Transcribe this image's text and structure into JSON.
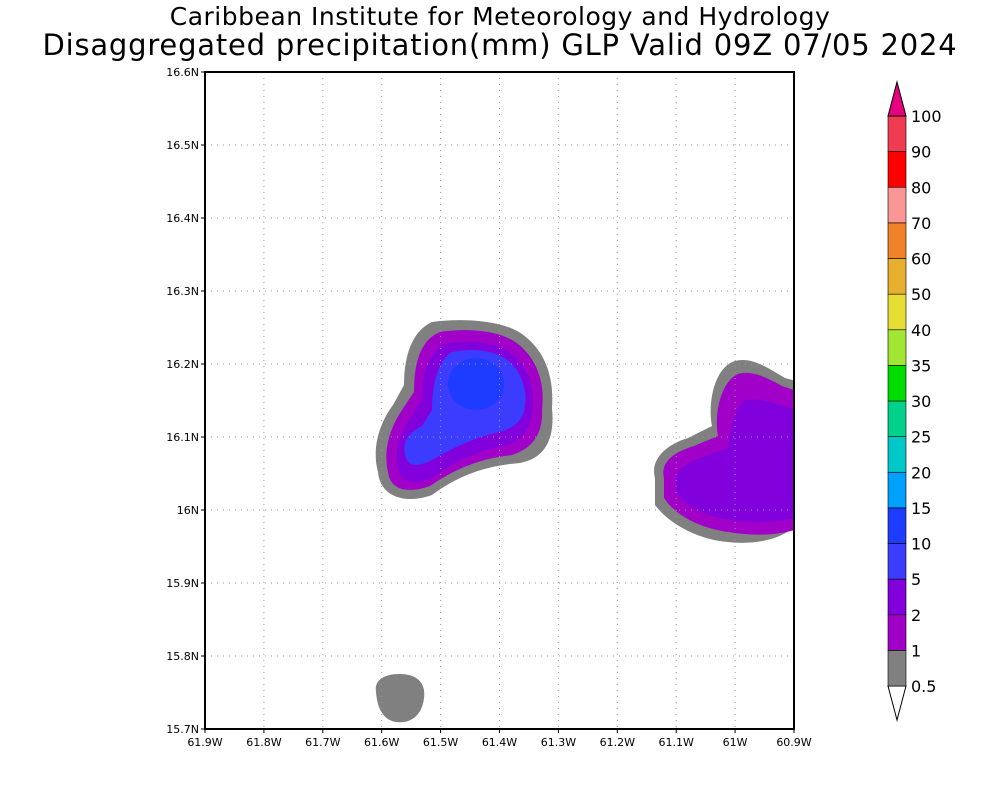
{
  "title": {
    "line1": "Caribbean Institute for Meteorology and Hydrology",
    "line2": "Disaggregated precipitation(mm) GLP Valid 09Z 07/05 2024"
  },
  "map": {
    "lon_range": [
      -61.9,
      -60.9
    ],
    "lat_range": [
      15.7,
      16.6
    ],
    "x_tick_labels": [
      "61.9W",
      "61.8W",
      "61.7W",
      "61.6W",
      "61.5W",
      "61.4W",
      "61.3W",
      "61.2W",
      "61.1W",
      "61W",
      "60.9W"
    ],
    "y_tick_labels": [
      "15.7N",
      "15.8N",
      "15.9N",
      "16N",
      "16.1N",
      "16.2N",
      "16.3N",
      "16.4N",
      "16.5N",
      "16.6N"
    ],
    "grid": "dotted"
  },
  "legend": {
    "levels": [
      "0.5",
      "1",
      "2",
      "5",
      "10",
      "15",
      "20",
      "25",
      "30",
      "35",
      "40",
      "50",
      "60",
      "70",
      "80",
      "90",
      "100"
    ],
    "colors": [
      "#ffffff",
      "#808080",
      "#a000c8",
      "#8200dc",
      "#3c3cff",
      "#1e3cff",
      "#00a0ff",
      "#00c8c8",
      "#00d28c",
      "#00dc00",
      "#a0e632",
      "#e6dc32",
      "#e6af2d",
      "#f08228",
      "#fa9696",
      "#ff0000",
      "#f03c50",
      "#e6007f"
    ]
  },
  "chart_data": {
    "type": "heatmap",
    "title": "Disaggregated precipitation(mm) GLP Valid 09Z 07/05 2024",
    "xlim": [
      -61.9,
      -60.9
    ],
    "ylim": [
      15.7,
      16.6
    ],
    "units": "mm",
    "features": [
      {
        "level_range": [
          "0.5",
          "1"
        ],
        "lon": -61.56,
        "lat": 15.74
      },
      {
        "level_range": [
          "0.5",
          "10"
        ],
        "lon": -61.45,
        "lat": 16.15,
        "max_level": "10"
      },
      {
        "level_range": [
          "0.5",
          "2"
        ],
        "lon": -61.0,
        "lat": 16.07,
        "max_level": "2"
      }
    ]
  }
}
